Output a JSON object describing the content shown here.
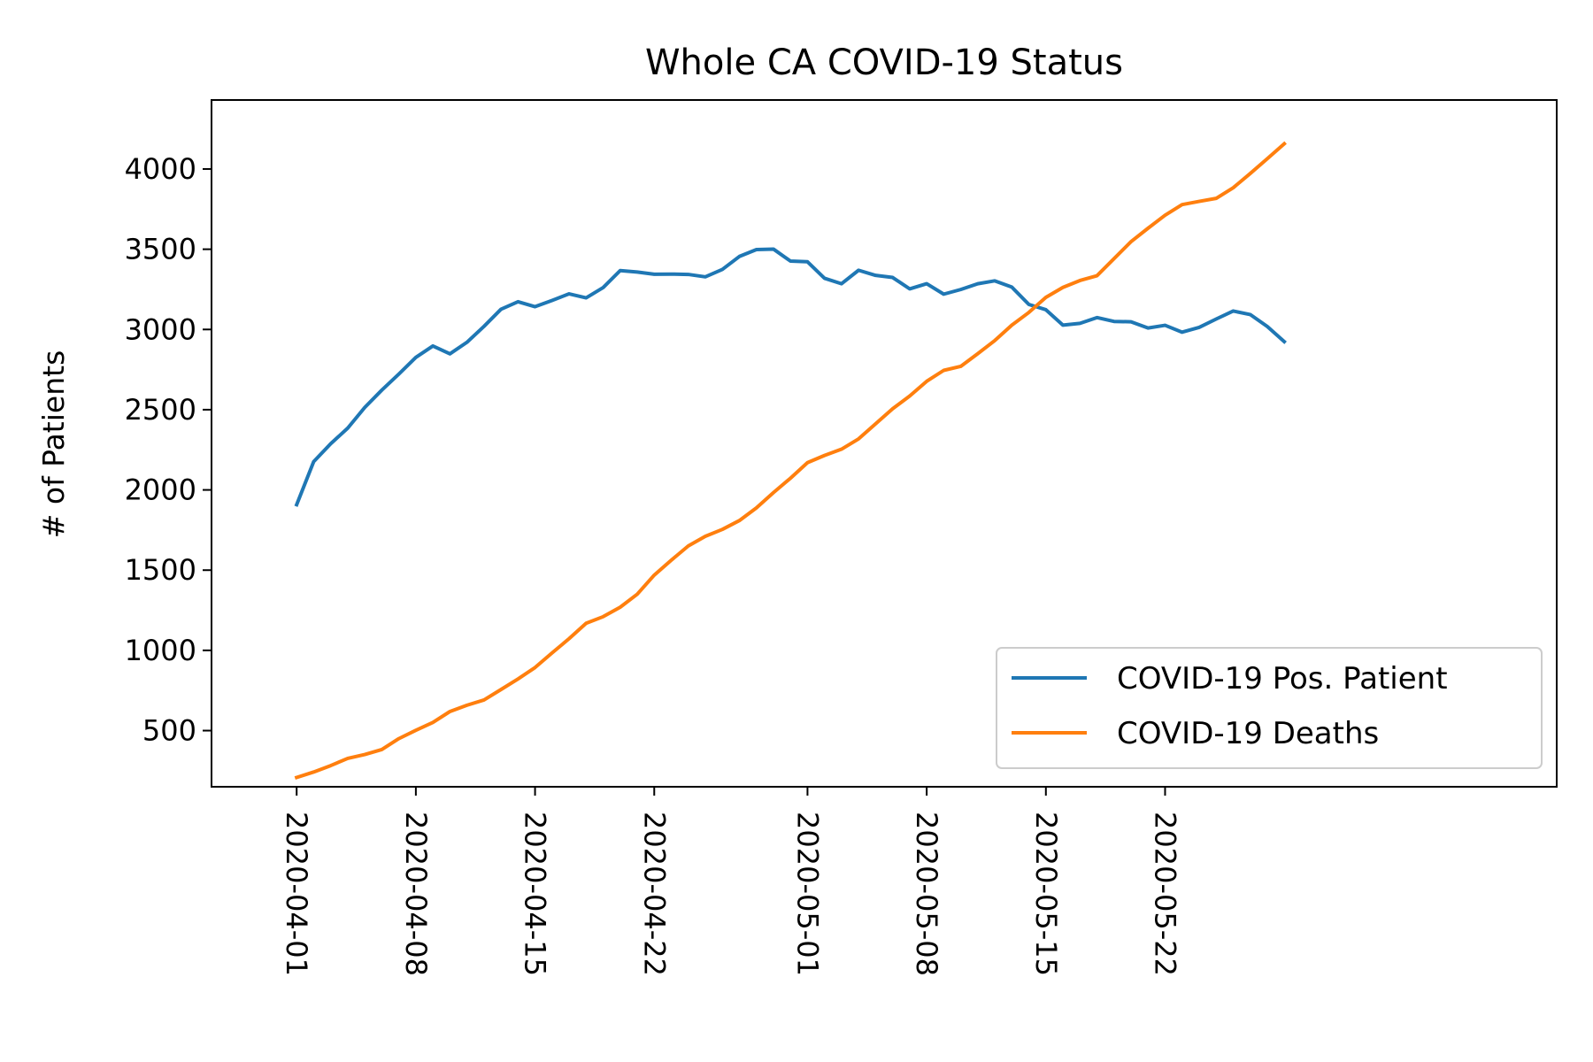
{
  "chart_data": {
    "type": "line",
    "title": "Whole CA COVID-19 Status",
    "xlabel": "",
    "ylabel": "# of Patients",
    "x_axis_type": "date",
    "xlim": [
      "2020-03-27",
      "2020-06-14"
    ],
    "ylim": [
      150,
      4430
    ],
    "x_ticks": [
      "2020-04-01",
      "2020-04-08",
      "2020-04-15",
      "2020-04-22",
      "2020-05-01",
      "2020-05-08",
      "2020-05-15",
      "2020-05-22"
    ],
    "y_ticks": [
      500,
      1000,
      1500,
      2000,
      2500,
      3000,
      3500,
      4000
    ],
    "grid": false,
    "legend_position": "lower-right",
    "x_start": "2020-04-01",
    "series": [
      {
        "name": "COVID-19 Pos. Patient",
        "color": "#1f77b4",
        "values": [
          1908,
          2176,
          2288,
          2385,
          2514,
          2622,
          2722,
          2826,
          2897,
          2848,
          2920,
          3019,
          3126,
          3173,
          3142,
          3181,
          3222,
          3197,
          3261,
          3367,
          3358,
          3344,
          3345,
          3343,
          3328,
          3374,
          3455,
          3498,
          3501,
          3426,
          3422,
          3319,
          3285,
          3369,
          3337,
          3324,
          3253,
          3285,
          3220,
          3249,
          3285,
          3303,
          3264,
          3156,
          3123,
          3027,
          3038,
          3074,
          3050,
          3048,
          3009,
          3026,
          2983,
          3013,
          3065,
          3115,
          3093,
          3019,
          2924
        ]
      },
      {
        "name": "COVID-19 Deaths",
        "color": "#ff7f0e",
        "values": [
          208,
          242,
          282,
          327,
          351,
          382,
          450,
          502,
          551,
          619,
          658,
          691,
          756,
          822,
          893,
          984,
          1073,
          1169,
          1210,
          1269,
          1350,
          1469,
          1562,
          1651,
          1711,
          1754,
          1809,
          1888,
          1983,
          2073,
          2170,
          2215,
          2254,
          2318,
          2412,
          2506,
          2585,
          2677,
          2745,
          2770,
          2849,
          2931,
          3027,
          3106,
          3200,
          3262,
          3305,
          3335,
          3441,
          3547,
          3631,
          3712,
          3778,
          3798,
          3817,
          3883,
          3972,
          4064,
          4157
        ]
      }
    ]
  }
}
